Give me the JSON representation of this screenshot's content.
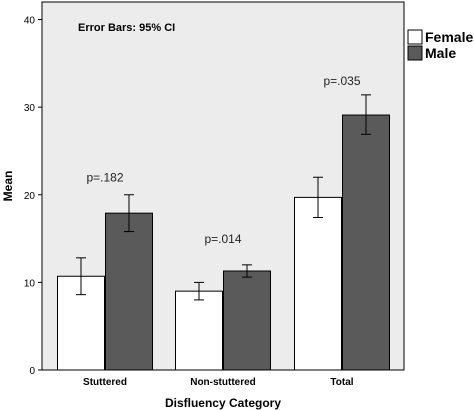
{
  "chart_data": {
    "type": "bar",
    "note": "Error Bars: 95% CI",
    "xlabel": "Disfluency Category",
    "ylabel": "Mean",
    "categories": [
      "Stuttered",
      "Non-stuttered",
      "Total"
    ],
    "ylim": [
      0,
      42
    ],
    "yticks": [
      0,
      10,
      20,
      30,
      40
    ],
    "series": [
      {
        "name": "Female",
        "color": "#ffffff",
        "values": [
          10.7,
          9.0,
          19.7
        ],
        "ci_low": [
          8.6,
          8.0,
          17.4
        ],
        "ci_high": [
          12.8,
          10.0,
          22.0
        ]
      },
      {
        "name": "Male",
        "color": "#5a5a5a",
        "values": [
          17.9,
          11.3,
          29.1
        ],
        "ci_low": [
          15.8,
          10.6,
          26.9
        ],
        "ci_high": [
          20.0,
          12.0,
          31.4
        ]
      }
    ],
    "annotations": [
      "p=.182",
      "p=.014",
      "p=.035"
    ],
    "annotation_y": [
      21.5,
      14.5,
      32.5
    ],
    "plot_background": "#ececec",
    "legend_position": "right-top"
  }
}
